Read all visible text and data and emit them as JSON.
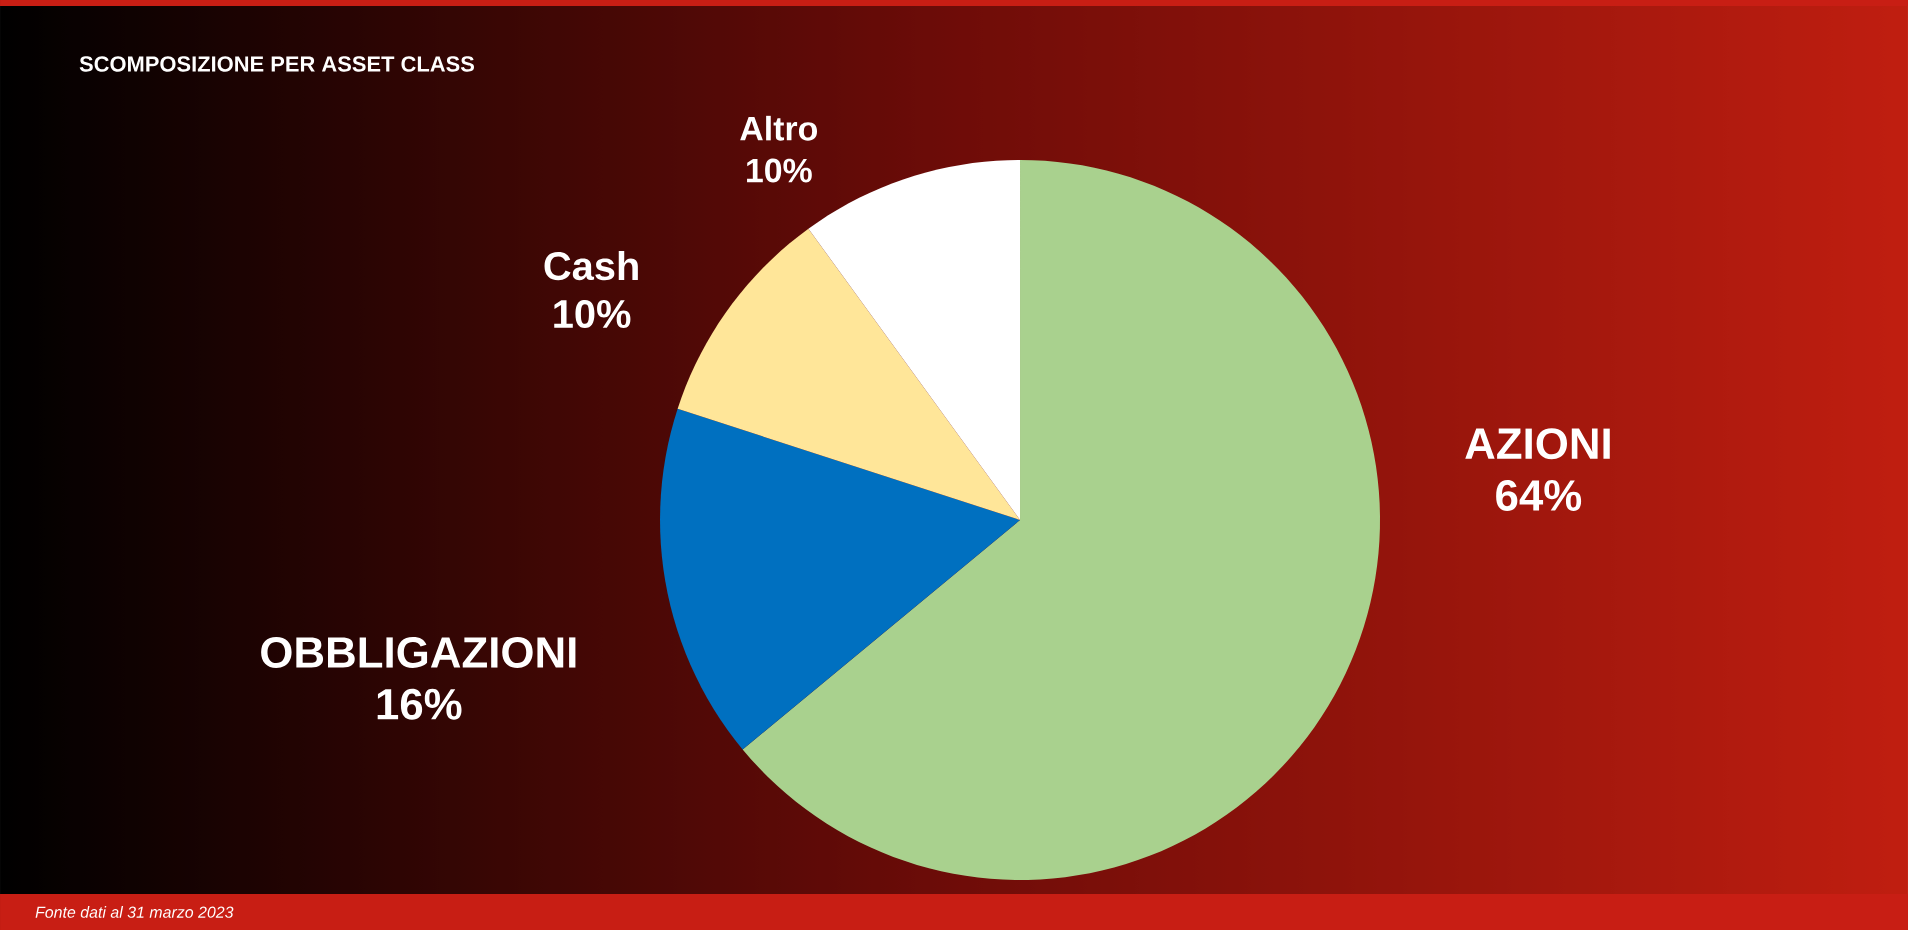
{
  "chart_data": {
    "type": "pie",
    "title": "SCOMPOSIZIONE PER ASSET CLASS",
    "categories": [
      "AZIONI",
      "OBBLIGAZIONI",
      "Cash",
      "Altro"
    ],
    "values": [
      64,
      16,
      10,
      10
    ],
    "value_labels": [
      "64%",
      "16%",
      "10%",
      "10%"
    ],
    "colors": [
      "#a9d18e",
      "#0070c0",
      "#ffe699",
      "#ffffff"
    ],
    "annotations": [
      "Fonte dati al 31 marzo 2023"
    ]
  }
}
